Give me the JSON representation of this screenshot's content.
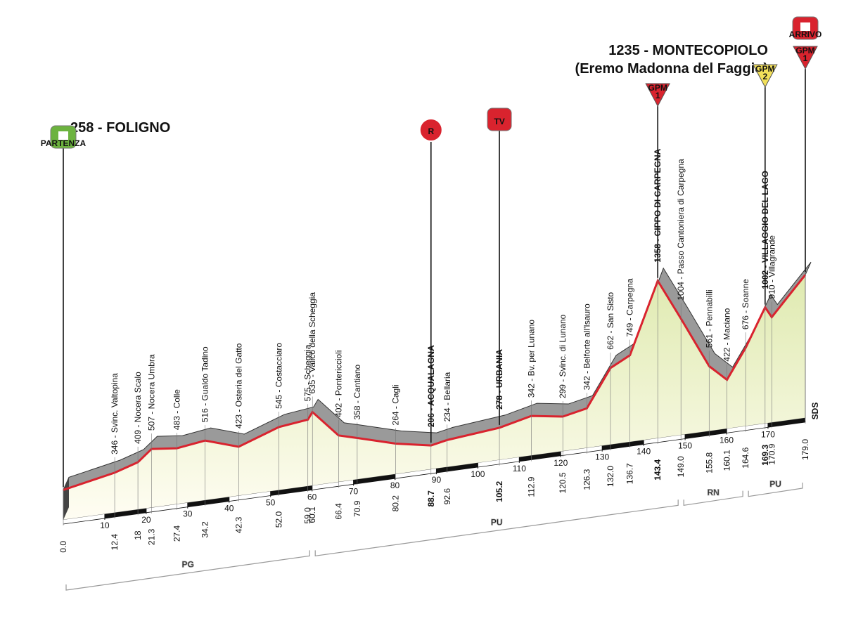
{
  "chart_data": {
    "type": "profile",
    "start_title": "258 - FOLIGNO",
    "finish_title": "1235 - MONTECOPIOLO",
    "finish_subtitle": "(Eremo Madonna del Faggio)",
    "side_label": "SDS",
    "line_color": "#d9232e",
    "xlim": [
      0,
      179
    ],
    "xticks": [
      10,
      20,
      30,
      40,
      50,
      60,
      70,
      80,
      90,
      100,
      110,
      120,
      130,
      140,
      150,
      160,
      170
    ],
    "waypoints": [
      {
        "km": {
          "value": 0,
          "label": "0.0"
        },
        "altitude": 258
      },
      {
        "km": 12.4,
        "altitude": 346,
        "label": "346 - Svinc. Valtopina"
      },
      {
        "km": 18.0,
        "altitude": 409,
        "label": "409 - Nocera Scalo"
      },
      {
        "km": 21.3,
        "altitude": 507,
        "label": "507 - Nocera Umbra"
      },
      {
        "km": 27.4,
        "altitude": 483,
        "label": "483 - Colle"
      },
      {
        "km": 34.2,
        "altitude": 516,
        "label": "516 - Gualdo Tadino"
      },
      {
        "km": 42.3,
        "altitude": 423,
        "label": "423 - Osteria del Gatto"
      },
      {
        "km": {
          "value": 52,
          "label": "52.0"
        },
        "altitude": 545,
        "label": "545 - Costacciaro"
      },
      {
        "km": {
          "value": 59,
          "label": "59.0"
        },
        "altitude": 575,
        "label": "575 - Scheggia"
      },
      {
        "km": 60.1,
        "altitude": 635,
        "label": "635 - Valico della Scheggia"
      },
      {
        "km": 66.4,
        "altitude": 402,
        "label": "402 - Ponte­riccioli"
      },
      {
        "km": 70.9,
        "altitude": 358,
        "label": "358 - Cantiano"
      },
      {
        "km": 80.2,
        "altitude": 264,
        "label": "264 - Cagli"
      },
      {
        "km": 88.7,
        "altitude": 206,
        "label": "206 - ACQUALAGNA",
        "bold": true
      },
      {
        "km": 92.6,
        "altitude": 234,
        "label": "234 - Bellaria"
      },
      {
        "km": 105.2,
        "altitude": 278,
        "label": "278 - URBANIA",
        "bold": true
      },
      {
        "km": 112.9,
        "altitude": 342,
        "label": "342 - Bv. per Lunano"
      },
      {
        "km": 120.5,
        "altitude": 299,
        "label": "299 - Svinc. di Lunano"
      },
      {
        "km": 126.3,
        "altitude": 342,
        "label": "342 - Belforte all'Isauro"
      },
      {
        "km": {
          "value": 132,
          "label": "132.0"
        },
        "altitude": 662,
        "label": "662 - San Sisto"
      },
      {
        "km": 136.7,
        "altitude": 749,
        "label": "749 - Carpegna"
      },
      {
        "km": 143.4,
        "altitude": 1358,
        "label": "1358 - CIPPO DI CARPEGNA",
        "bold": true
      },
      {
        "km": {
          "value": 149,
          "label": "149.0"
        },
        "altitude": 1004,
        "label": "1004 - Passo Cantoniera di Carpegna"
      },
      {
        "km": 155.8,
        "altitude": 561,
        "label": "561 - Pennabilli"
      },
      {
        "km": 160.1,
        "altitude": 422,
        "label": "422 - Maciano"
      },
      {
        "km": 164.6,
        "altitude": 676,
        "label": "676 - Soanne"
      },
      {
        "km": 169.3,
        "altitude": 1002,
        "label": "1002 - VILLAGGIO DEL LAGO",
        "bold": true
      },
      {
        "km": 170.9,
        "altitude": 910,
        "label": "910 - Villagrande"
      },
      {
        "km": {
          "value": 179,
          "label": "179.0"
        },
        "altitude": 1235
      }
    ],
    "markers": [
      {
        "km": 0,
        "label": "PARTENZA",
        "shape": "rect",
        "color": "#6cb33f"
      },
      {
        "km": 88.7,
        "label": "R",
        "shape": "circle",
        "color": "#d9232e"
      },
      {
        "km": 105.2,
        "label": "TV",
        "shape": "rect",
        "color": "#d9232e"
      },
      {
        "km": 143.4,
        "label": "GPM",
        "category": "1",
        "shape": "triangle",
        "color": "#d9232e"
      },
      {
        "km": 169.3,
        "label": "GPM",
        "category": "2",
        "shape": "triangle",
        "color": "#f2e05a"
      },
      {
        "km": 179,
        "label": "GPM",
        "category": "1",
        "shape": "triangle",
        "color": "#d9232e"
      },
      {
        "km": 179,
        "label": "ARRIVO",
        "shape": "rect",
        "color": "#d9232e"
      }
    ],
    "regions": [
      {
        "label": "PG",
        "from": 0,
        "to": 60.1
      },
      {
        "label": "PU",
        "from": 60.1,
        "to": 149
      },
      {
        "label": "RN",
        "from": 149,
        "to": 164.6
      },
      {
        "label": "PU",
        "from": 164.6,
        "to": 179
      }
    ]
  }
}
